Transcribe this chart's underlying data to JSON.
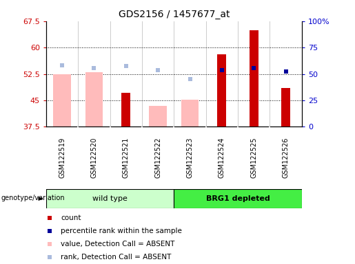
{
  "title": "GDS2156 / 1457677_at",
  "samples": [
    "GSM122519",
    "GSM122520",
    "GSM122521",
    "GSM122522",
    "GSM122523",
    "GSM122524",
    "GSM122525",
    "GSM122526"
  ],
  "ylim_left": [
    37.5,
    67.5
  ],
  "ylim_right": [
    0,
    100
  ],
  "yticks_left": [
    37.5,
    45.0,
    52.5,
    60.0,
    67.5
  ],
  "yticks_right": [
    0,
    25,
    50,
    75,
    100
  ],
  "ytick_labels_left": [
    "37.5",
    "45",
    "52.5",
    "60",
    "67.5"
  ],
  "ytick_labels_right": [
    "0",
    "25",
    "50",
    "75",
    "100%"
  ],
  "count_values": [
    null,
    null,
    47.2,
    null,
    null,
    58.0,
    65.0,
    48.5
  ],
  "rank_values": [
    null,
    null,
    null,
    null,
    null,
    53.5,
    54.2,
    53.2
  ],
  "absent_value_values": [
    52.5,
    53.0,
    null,
    43.5,
    45.2,
    null,
    null,
    null
  ],
  "absent_rank_values": [
    55.0,
    54.2,
    54.8,
    53.5,
    51.0,
    null,
    null,
    null
  ],
  "bar_bottom": 37.5,
  "count_color": "#cc0000",
  "rank_color": "#000099",
  "absent_value_color": "#ffbbbb",
  "absent_rank_color": "#aabbdd",
  "ylabel_left_color": "#cc0000",
  "ylabel_right_color": "#0000cc",
  "wt_color": "#ccffcc",
  "brg_color": "#44ee44",
  "genotype_label": "genotype/variation",
  "legend_items": [
    {
      "color": "#cc0000",
      "label": "count"
    },
    {
      "color": "#000099",
      "label": "percentile rank within the sample"
    },
    {
      "color": "#ffbbbb",
      "label": "value, Detection Call = ABSENT"
    },
    {
      "color": "#aabbdd",
      "label": "rank, Detection Call = ABSENT"
    }
  ]
}
